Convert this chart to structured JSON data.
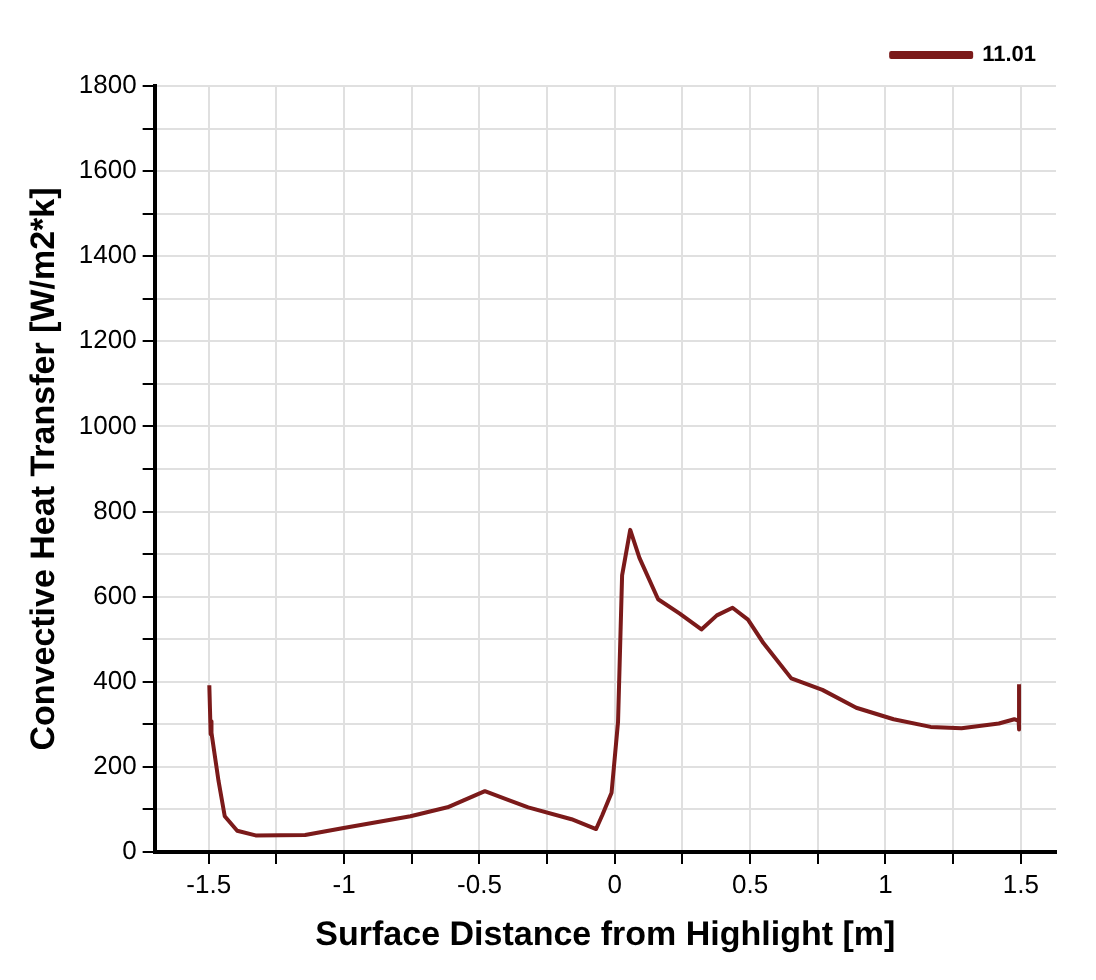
{
  "chart_data": {
    "type": "line",
    "xlabel": "Surface Distance from Highlight [m]",
    "ylabel": "Convective Heat Transfer [W/m2*k]",
    "xlim": [
      -1.7,
      1.63
    ],
    "ylim": [
      0,
      1800
    ],
    "xticks": [
      -1.5,
      {
        "value": -1.25,
        "label": null
      },
      -1,
      {
        "value": -0.75,
        "label": null
      },
      -0.5,
      {
        "value": -0.25,
        "label": null
      },
      0,
      {
        "value": 0.25,
        "label": null
      },
      0.5,
      {
        "value": 0.75,
        "label": null
      },
      1,
      {
        "value": 1.25,
        "label": null
      },
      1.5
    ],
    "yticks": [
      0,
      {
        "value": 100,
        "label": null
      },
      200,
      {
        "value": 300,
        "label": null
      },
      400,
      {
        "value": 500,
        "label": null
      },
      600,
      {
        "value": 700,
        "label": null
      },
      800,
      {
        "value": 900,
        "label": null
      },
      1000,
      {
        "value": 1100,
        "label": null
      },
      1200,
      {
        "value": 1300,
        "label": null
      },
      1400,
      {
        "value": 1500,
        "label": null
      },
      1600,
      {
        "value": 1700,
        "label": null
      },
      1800
    ],
    "grid": true,
    "legend": "top right",
    "marker": "none",
    "line_style": "solid",
    "series": [
      {
        "name": "11.01",
        "color": "#7b1a1a",
        "x": [
          -1.498,
          -1.493,
          -1.491,
          -1.489,
          -1.464,
          -1.441,
          -1.395,
          -1.327,
          -1.144,
          -1.007,
          -0.755,
          -0.618,
          -0.48,
          -0.32,
          -0.16,
          -0.069,
          -0.046,
          -0.012,
          0.012,
          0.027,
          0.057,
          0.091,
          0.16,
          0.24,
          0.32,
          0.377,
          0.435,
          0.492,
          0.549,
          0.652,
          0.767,
          0.892,
          1.03,
          1.167,
          1.281,
          1.419,
          1.476,
          1.492,
          1.493,
          1.494
        ],
        "values": [
          392,
          277,
          307,
          280,
          167,
          84,
          50,
          39,
          40,
          56,
          84,
          105,
          143,
          105,
          77,
          54,
          87,
          139,
          306,
          650,
          757,
          691,
          594,
          560,
          523,
          556,
          574,
          546,
          491,
          408,
          381,
          339,
          312,
          294,
          291,
          302,
          312,
          308,
          288,
          394
        ]
      }
    ]
  }
}
